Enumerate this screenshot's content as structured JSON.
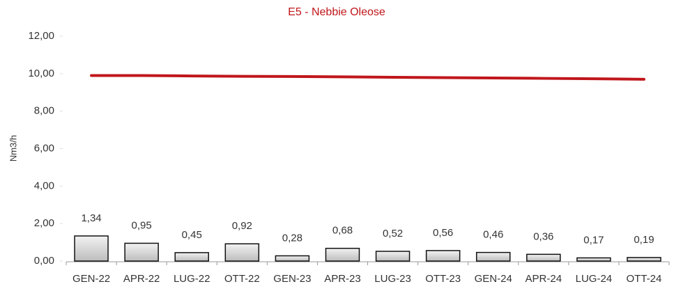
{
  "chart_data": {
    "type": "bar",
    "title": "E5 - Nebbie Oleose",
    "y_label": "Nm3/h",
    "categories": [
      "GEN-22",
      "APR-22",
      "LUG-22",
      "OTT-22",
      "GEN-23",
      "APR-23",
      "LUG-23",
      "OTT-23",
      "GEN-24",
      "APR-24",
      "LUG-24",
      "OTT-24"
    ],
    "values": [
      1.34,
      0.95,
      0.45,
      0.92,
      0.28,
      0.68,
      0.52,
      0.56,
      0.46,
      0.36,
      0.17,
      0.19
    ],
    "value_labels": [
      "1,34",
      "0,95",
      "0,45",
      "0,92",
      "0,28",
      "0,68",
      "0,52",
      "0,56",
      "0,46",
      "0,36",
      "0,17",
      "0,19"
    ],
    "color": "#d4d4d4",
    "lines": [
      {
        "color": "#c0161b",
        "values": [
          9.9,
          9.9,
          9.88,
          9.86,
          9.85,
          9.83,
          9.81,
          9.79,
          9.77,
          9.75,
          9.73,
          9.7
        ]
      }
    ],
    "ylim": [
      0,
      12
    ],
    "yticks": [
      {
        "value": 0,
        "label": "0,00"
      },
      {
        "value": 2,
        "label": "2,00"
      },
      {
        "value": 4,
        "label": "4,00"
      },
      {
        "value": 6,
        "label": "6,00"
      },
      {
        "value": 8,
        "label": "8,00"
      },
      {
        "value": 10,
        "label": "10,00"
      },
      {
        "value": 12,
        "label": "12,00"
      }
    ],
    "grid": false
  }
}
